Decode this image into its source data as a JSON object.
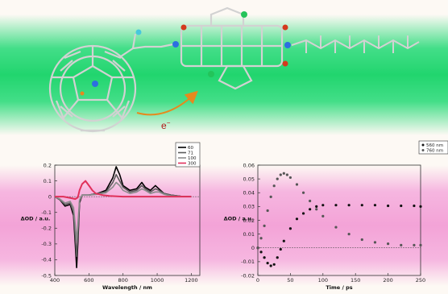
{
  "molecule": {
    "electron_label": "e",
    "electron_superscript": "−",
    "colors": {
      "green_band": "#2fd97a",
      "pink_band": "#f4a6d9",
      "arrow": "#e6891e",
      "bond": "#cfcfcf",
      "nitrogen": "#2d6fe0",
      "oxygen": "#d43a1e",
      "chlorine": "#23c45a",
      "hydrogen": "#48c7dd"
    }
  },
  "chart_data": [
    {
      "type": "line",
      "xlabel": "Wavelength / nm",
      "ylabel": "ΔOD / a.u.",
      "xlim": [
        400,
        1250
      ],
      "ylim": [
        -0.5,
        0.2
      ],
      "xticks": [
        "400",
        "600",
        "800",
        "1000",
        "1200"
      ],
      "yticks": [
        "0.2",
        "0.1",
        "0",
        "-0.1",
        "-0.2",
        "-0.3",
        "-0.4",
        "-0.5"
      ],
      "legend_placement": "top-right",
      "series": [
        {
          "name": "60",
          "color": "#000000",
          "x": [
            400,
            430,
            460,
            490,
            510,
            520,
            528,
            535,
            545,
            560,
            600,
            650,
            700,
            740,
            760,
            780,
            800,
            840,
            880,
            910,
            930,
            960,
            990,
            1010,
            1040,
            1080,
            1150,
            1200
          ],
          "y": [
            0,
            -0.02,
            -0.06,
            -0.05,
            -0.12,
            -0.3,
            -0.45,
            -0.3,
            -0.04,
            0.01,
            0.01,
            0.02,
            0.04,
            0.12,
            0.19,
            0.14,
            0.07,
            0.04,
            0.05,
            0.09,
            0.06,
            0.04,
            0.07,
            0.05,
            0.02,
            0.01,
            0,
            0
          ]
        },
        {
          "name": "71",
          "color": "#5a5a5a",
          "x": [
            400,
            430,
            460,
            490,
            510,
            520,
            528,
            535,
            545,
            560,
            600,
            650,
            700,
            740,
            760,
            780,
            800,
            840,
            880,
            910,
            930,
            960,
            990,
            1010,
            1040,
            1080,
            1150,
            1200
          ],
          "y": [
            0,
            -0.02,
            -0.05,
            -0.04,
            -0.1,
            -0.25,
            -0.38,
            -0.25,
            -0.03,
            0.01,
            0.01,
            0.02,
            0.03,
            0.09,
            0.14,
            0.1,
            0.06,
            0.03,
            0.04,
            0.07,
            0.05,
            0.03,
            0.05,
            0.04,
            0.02,
            0.01,
            0,
            0
          ]
        },
        {
          "name": "100",
          "color": "#8c8c8c",
          "x": [
            400,
            430,
            460,
            490,
            510,
            520,
            528,
            535,
            545,
            560,
            600,
            650,
            700,
            740,
            760,
            780,
            800,
            840,
            880,
            910,
            930,
            960,
            990,
            1010,
            1040,
            1080,
            1150,
            1200
          ],
          "y": [
            0,
            -0.015,
            -0.04,
            -0.03,
            -0.07,
            -0.18,
            -0.28,
            -0.18,
            -0.02,
            0.01,
            0.01,
            0.015,
            0.025,
            0.06,
            0.09,
            0.07,
            0.04,
            0.02,
            0.03,
            0.05,
            0.04,
            0.02,
            0.03,
            0.03,
            0.015,
            0.005,
            0,
            0
          ]
        },
        {
          "name": "300",
          "color": "#e0305a",
          "x": [
            400,
            450,
            500,
            520,
            535,
            545,
            560,
            580,
            600,
            620,
            640,
            680,
            720,
            800,
            900,
            1000,
            1100,
            1200
          ],
          "y": [
            0,
            0,
            -0.01,
            -0.015,
            -0.005,
            0.04,
            0.08,
            0.1,
            0.07,
            0.04,
            0.02,
            0.01,
            0.005,
            0,
            0,
            0,
            0,
            0
          ]
        }
      ]
    },
    {
      "type": "scatter",
      "xlabel": "Time / ps",
      "ylabel": "ΔOD / a.u.",
      "xlim": [
        0,
        250
      ],
      "ylim": [
        -0.02,
        0.06
      ],
      "xticks": [
        "0",
        "50",
        "100",
        "150",
        "200",
        "250"
      ],
      "yticks": [
        "0.06",
        "0.05",
        "0.04",
        "0.03",
        "0.02",
        "0.01",
        "0",
        "-0.01",
        "-0.02"
      ],
      "legend_placement": "top-right",
      "series": [
        {
          "name": "560 nm",
          "color": "#111111",
          "x": [
            0,
            5,
            10,
            15,
            20,
            25,
            30,
            35,
            40,
            50,
            60,
            70,
            80,
            90,
            100,
            120,
            140,
            160,
            180,
            200,
            220,
            240,
            250
          ],
          "y": [
            0,
            -0.003,
            -0.007,
            -0.011,
            -0.013,
            -0.012,
            -0.007,
            -0.001,
            0.005,
            0.014,
            0.021,
            0.025,
            0.028,
            0.03,
            0.031,
            0.031,
            0.031,
            0.031,
            0.031,
            0.0305,
            0.0305,
            0.0305,
            0.03
          ]
        },
        {
          "name": "760 nm",
          "color": "#555555",
          "x": [
            0,
            5,
            10,
            15,
            20,
            25,
            30,
            35,
            40,
            45,
            50,
            60,
            70,
            80,
            90,
            100,
            120,
            140,
            160,
            180,
            200,
            220,
            240,
            250
          ],
          "y": [
            0,
            0.007,
            0.016,
            0.027,
            0.037,
            0.045,
            0.05,
            0.053,
            0.054,
            0.053,
            0.051,
            0.046,
            0.04,
            0.034,
            0.028,
            0.023,
            0.015,
            0.01,
            0.006,
            0.004,
            0.003,
            0.002,
            0.002,
            0.002
          ]
        }
      ]
    }
  ]
}
